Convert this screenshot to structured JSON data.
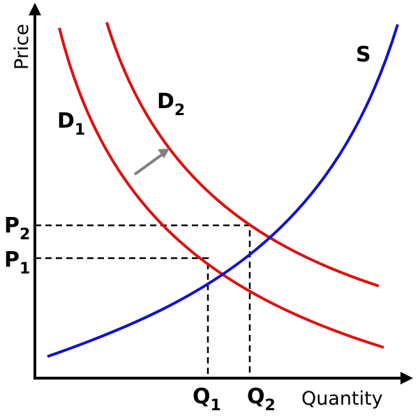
{
  "axes": {
    "y_label": "Price",
    "x_label": "Quantity"
  },
  "curves": [
    {
      "letter": "S"
    },
    {
      "letter": "D",
      "subscript": "1"
    },
    {
      "letter": "D",
      "subscript": "2"
    }
  ],
  "prices": [
    {
      "letter": "P",
      "subscript": "1"
    },
    {
      "letter": "P",
      "subscript": "2"
    }
  ],
  "quantities": [
    {
      "letter": "Q",
      "subscript": "1"
    },
    {
      "letter": "Q",
      "subscript": "2"
    }
  ]
}
